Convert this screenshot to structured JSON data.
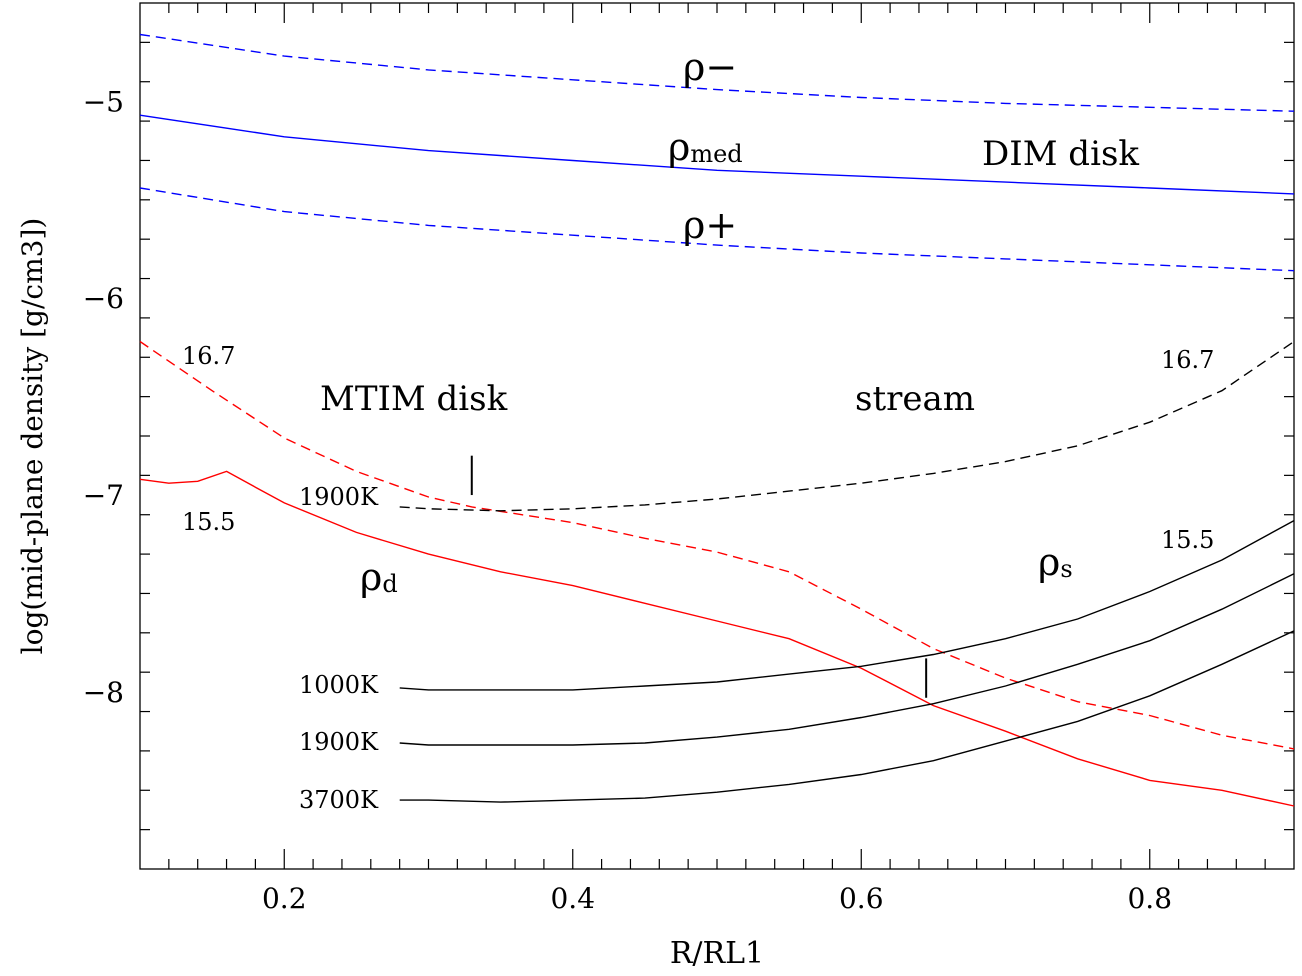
{
  "chart_data": {
    "type": "line",
    "xlabel": "R/RL1",
    "ylabel": "log(mid-plane density [g/cm3])",
    "xlim": [
      0.1,
      0.9
    ],
    "ylim": [
      -8.9,
      -4.5
    ],
    "xticks": [
      "0.2",
      "0.4",
      "0.6",
      "0.8"
    ],
    "yticks": [
      "−5",
      "−6",
      "−7",
      "−8"
    ],
    "grid": false,
    "colors": {
      "dim": "#0000ff",
      "disk": "#ff0000",
      "stream": "#000000"
    },
    "series": [
      {
        "name": "ρ−",
        "color": "#0000ff",
        "dash": true,
        "x": [
          0.1,
          0.2,
          0.3,
          0.4,
          0.5,
          0.6,
          0.7,
          0.8,
          0.9
        ],
        "y": [
          -4.66,
          -4.77,
          -4.84,
          -4.89,
          -4.94,
          -4.98,
          -5.01,
          -5.03,
          -5.05
        ]
      },
      {
        "name": "ρmed",
        "color": "#0000ff",
        "dash": false,
        "x": [
          0.1,
          0.2,
          0.3,
          0.4,
          0.5,
          0.6,
          0.7,
          0.8,
          0.9
        ],
        "y": [
          -5.07,
          -5.18,
          -5.25,
          -5.3,
          -5.35,
          -5.38,
          -5.41,
          -5.44,
          -5.47
        ]
      },
      {
        "name": "ρ+",
        "color": "#0000ff",
        "dash": true,
        "x": [
          0.1,
          0.2,
          0.3,
          0.4,
          0.5,
          0.6,
          0.7,
          0.8,
          0.9
        ],
        "y": [
          -5.44,
          -5.56,
          -5.63,
          -5.68,
          -5.73,
          -5.77,
          -5.8,
          -5.83,
          -5.86
        ]
      },
      {
        "name": "ρd 16.7",
        "color": "#ff0000",
        "dash": true,
        "x": [
          0.1,
          0.15,
          0.2,
          0.25,
          0.3,
          0.33,
          0.4,
          0.45,
          0.5,
          0.55,
          0.6,
          0.65,
          0.7,
          0.75,
          0.8,
          0.85,
          0.9
        ],
        "y": [
          -6.22,
          -6.47,
          -6.71,
          -6.88,
          -7.01,
          -7.06,
          -7.14,
          -7.22,
          -7.29,
          -7.39,
          -7.58,
          -7.78,
          -7.93,
          -8.05,
          -8.12,
          -8.22,
          -8.29
        ]
      },
      {
        "name": "ρd",
        "color": "#ff0000",
        "dash": false,
        "x": [
          0.1,
          0.12,
          0.14,
          0.16,
          0.18,
          0.2,
          0.25,
          0.3,
          0.35,
          0.4,
          0.45,
          0.5,
          0.55,
          0.6,
          0.65,
          0.7,
          0.75,
          0.8,
          0.85,
          0.9
        ],
        "y": [
          -6.92,
          -6.94,
          -6.93,
          -6.88,
          -6.96,
          -7.04,
          -7.19,
          -7.3,
          -7.39,
          -7.46,
          -7.55,
          -7.64,
          -7.73,
          -7.88,
          -8.07,
          -8.2,
          -8.34,
          -8.45,
          -8.5,
          -8.58
        ]
      },
      {
        "name": "ρs 1900K 16.7",
        "color": "#000000",
        "dash": true,
        "x": [
          0.28,
          0.3,
          0.35,
          0.4,
          0.45,
          0.5,
          0.55,
          0.6,
          0.65,
          0.7,
          0.75,
          0.8,
          0.85,
          0.9
        ],
        "y": [
          -7.06,
          -7.07,
          -7.08,
          -7.07,
          -7.05,
          -7.02,
          -6.98,
          -6.94,
          -6.89,
          -6.83,
          -6.75,
          -6.63,
          -6.47,
          -6.22
        ]
      },
      {
        "name": "ρs 1000K",
        "color": "#000000",
        "dash": false,
        "x": [
          0.28,
          0.3,
          0.35,
          0.4,
          0.45,
          0.5,
          0.55,
          0.6,
          0.65,
          0.7,
          0.75,
          0.8,
          0.85,
          0.9
        ],
        "y": [
          -7.98,
          -7.99,
          -7.99,
          -7.99,
          -7.97,
          -7.95,
          -7.91,
          -7.87,
          -7.81,
          -7.73,
          -7.63,
          -7.49,
          -7.33,
          -7.13
        ]
      },
      {
        "name": "ρs 1900K",
        "color": "#000000",
        "dash": false,
        "x": [
          0.28,
          0.3,
          0.35,
          0.4,
          0.45,
          0.5,
          0.55,
          0.6,
          0.65,
          0.7,
          0.75,
          0.8,
          0.85,
          0.9
        ],
        "y": [
          -8.26,
          -8.27,
          -8.27,
          -8.27,
          -8.26,
          -8.23,
          -8.19,
          -8.13,
          -8.06,
          -7.97,
          -7.86,
          -7.74,
          -7.58,
          -7.4
        ]
      },
      {
        "name": "ρs 3700K",
        "color": "#000000",
        "dash": false,
        "x": [
          0.28,
          0.3,
          0.35,
          0.4,
          0.45,
          0.5,
          0.55,
          0.6,
          0.65,
          0.7,
          0.75,
          0.8,
          0.85,
          0.9
        ],
        "y": [
          -8.55,
          -8.55,
          -8.56,
          -8.55,
          -8.54,
          -8.51,
          -8.47,
          -8.42,
          -8.35,
          -8.25,
          -8.15,
          -8.02,
          -7.86,
          -7.69
        ]
      }
    ],
    "annotations": {
      "rho_minus": "ρ−",
      "rho_med": "ρ",
      "rho_med_sub": "med",
      "dim_disk": "DIM disk",
      "rho_plus": "ρ+",
      "mtim_disk": "MTIM disk",
      "stream": "stream",
      "d_top_left_16_7": "16.7",
      "d_left_15_5": "15.5",
      "s_right_16_7": "16.7",
      "s_right_15_5": "15.5",
      "rho_d": "ρ",
      "rho_d_sub": "d",
      "rho_s": "ρ",
      "rho_s_sub": "s",
      "t_1900k_top": "1900K",
      "t_1000k": "1000K",
      "t_1900k": "1900K",
      "t_3700k": "3700K"
    },
    "markers": [
      {
        "x": 0.33,
        "y_low": -7.0,
        "y_high": -6.8
      },
      {
        "x": 0.645,
        "y_low": -8.03,
        "y_high": -7.83
      }
    ]
  }
}
